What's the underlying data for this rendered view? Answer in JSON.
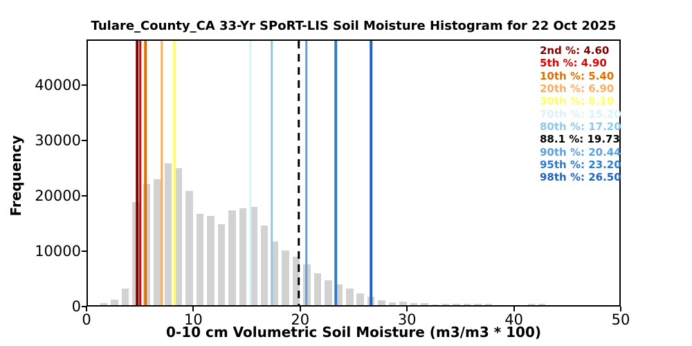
{
  "title": "Tulare_County_CA 33-Yr SPoRT-LIS Soil Moisture Histogram for 22 Oct 2025",
  "chart_data": {
    "type": "bar",
    "subtype": "histogram",
    "title": "Tulare_County_CA 33-Yr SPoRT-LIS Soil Moisture Histogram for 22 Oct 2025",
    "xlabel": "0-10 cm Volumetric Soil Moisture (m3/m3 * 100)",
    "ylabel": "Frequency",
    "xlim": [
      0,
      50
    ],
    "ylim": [
      0,
      48250
    ],
    "x_ticks": [
      0,
      10,
      20,
      30,
      40,
      50
    ],
    "y_ticks": [
      0,
      10000,
      20000,
      30000,
      40000
    ],
    "grid": false,
    "bar_color": "#d2d2d2",
    "bar_width_units": 0.68,
    "bar_centers": [
      1.5,
      2.5,
      3.5,
      4.5,
      5.5,
      6.5,
      7.5,
      8.5,
      9.5,
      10.5,
      11.5,
      12.5,
      13.5,
      14.5,
      15.5,
      16.5,
      17.5,
      18.5,
      19.5,
      20.5,
      21.5,
      22.5,
      23.5,
      24.5,
      25.5,
      26.5,
      27.5,
      28.5,
      29.5,
      30.5,
      31.5,
      32.5,
      33.5,
      34.5,
      35.5,
      36.5,
      37.5,
      41.5,
      42.5
    ],
    "bar_values": [
      400,
      950,
      3000,
      18600,
      21900,
      22700,
      25600,
      24700,
      20600,
      16500,
      16100,
      14600,
      17100,
      17500,
      17800,
      14400,
      11500,
      9900,
      8800,
      7400,
      5700,
      4550,
      3800,
      3000,
      2150,
      1450,
      830,
      550,
      660,
      330,
      330,
      170,
      250,
      250,
      250,
      250,
      250,
      200,
      200
    ],
    "legend_position": "upper right",
    "percentiles": [
      {
        "label": "2nd %",
        "value": "4.60",
        "x": 4.6,
        "color": "#7f0000",
        "style": "solid"
      },
      {
        "label": "5th %",
        "value": "4.90",
        "x": 4.9,
        "color": "#e00000",
        "style": "solid"
      },
      {
        "label": "10th %",
        "value": "5.40",
        "x": 5.4,
        "color": "#e06f00",
        "style": "solid"
      },
      {
        "label": "20th %",
        "value": "6.90",
        "x": 6.9,
        "color": "#fbae62",
        "style": "solid"
      },
      {
        "label": "30th %",
        "value": "8.10",
        "x": 8.1,
        "color": "#ffff64",
        "style": "solid"
      },
      {
        "label": "70th %",
        "value": "15.20",
        "x": 15.2,
        "color": "#daf3f9",
        "style": "solid"
      },
      {
        "label": "80th %",
        "value": "17.20",
        "x": 17.2,
        "color": "#8cc8ee",
        "style": "solid"
      },
      {
        "label": "88.1 %",
        "value": "19.73",
        "x": 19.73,
        "color": "#000000",
        "style": "dashed"
      },
      {
        "label": "90th %",
        "value": "20.44",
        "x": 20.44,
        "color": "#5c9fe0",
        "style": "solid"
      },
      {
        "label": "95th %",
        "value": "23.20",
        "x": 23.2,
        "color": "#2f7ad2",
        "style": "solid"
      },
      {
        "label": "98th %",
        "value": "26.50",
        "x": 26.5,
        "color": "#2162c2",
        "style": "solid"
      }
    ]
  }
}
